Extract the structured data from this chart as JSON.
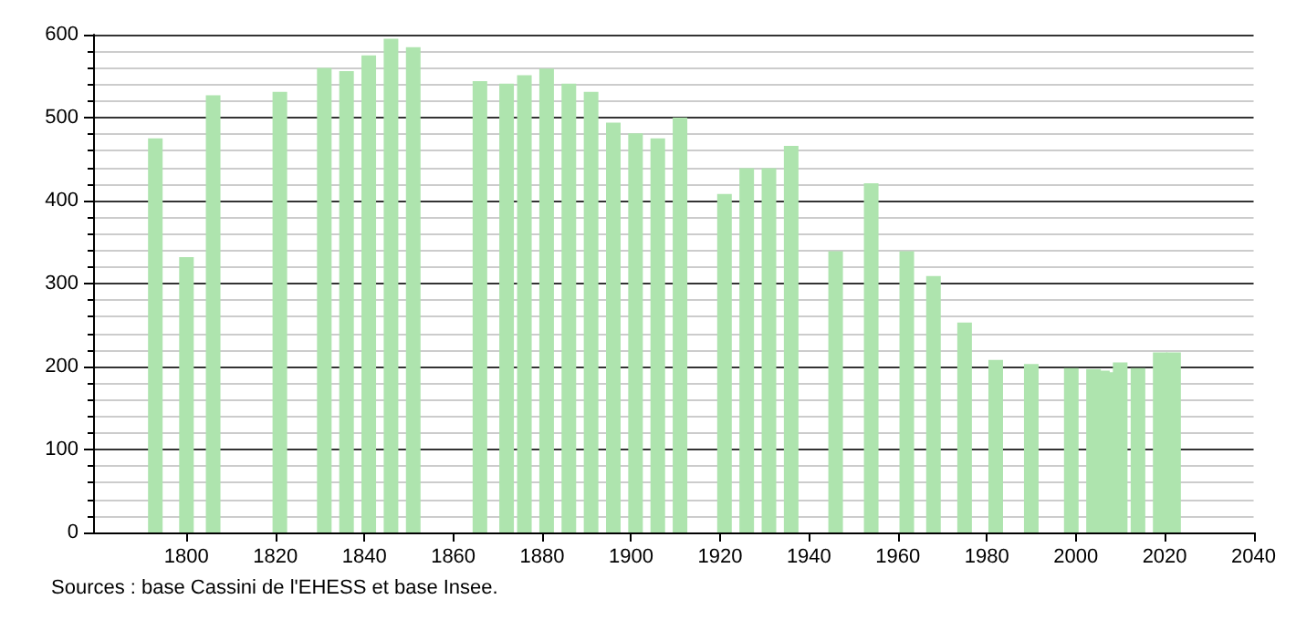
{
  "chart_data": {
    "type": "bar",
    "x": [
      1793,
      1800,
      1806,
      1821,
      1831,
      1836,
      1841,
      1846,
      1851,
      1866,
      1872,
      1876,
      1881,
      1886,
      1891,
      1896,
      1901,
      1906,
      1911,
      1921,
      1926,
      1931,
      1936,
      1946,
      1954,
      1962,
      1968,
      1975,
      1982,
      1990,
      1999,
      2004,
      2006,
      2008,
      2010,
      2014,
      2019,
      2022
    ],
    "values": [
      475,
      332,
      527,
      531,
      560,
      556,
      575,
      595,
      585,
      544,
      541,
      551,
      559,
      541,
      531,
      494,
      481,
      475,
      500,
      408,
      439,
      439,
      466,
      339,
      421,
      339,
      309,
      253,
      208,
      203,
      198,
      197,
      195,
      193,
      205,
      198,
      217,
      217
    ],
    "color": "#aee4ae",
    "xlim": [
      1779,
      2040
    ],
    "xticks": [
      1800,
      1820,
      1840,
      1860,
      1880,
      1900,
      1920,
      1940,
      1960,
      1980,
      2000,
      2020,
      2040
    ],
    "ylim": [
      0,
      600
    ],
    "yticks": [
      0,
      100,
      200,
      300,
      400,
      500,
      600
    ],
    "grid": "y",
    "annotations": [
      "Sources : base Cassini de l'EHESS et base Insee."
    ]
  }
}
